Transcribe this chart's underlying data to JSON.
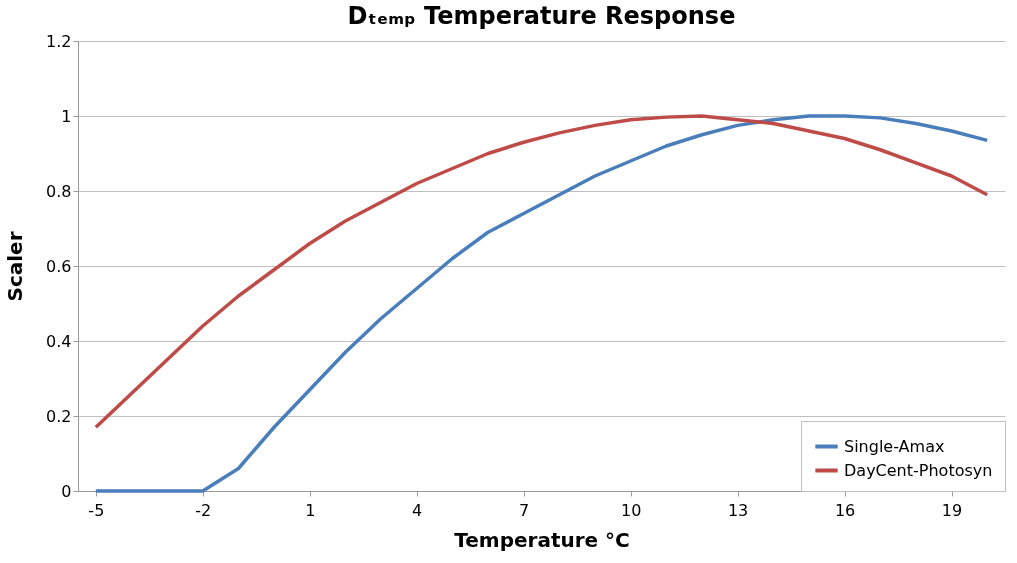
{
  "chart_data": {
    "type": "line",
    "title": "Dₜₑₘₚ Temperature Response",
    "xlabel": "Temperature °C",
    "ylabel": "Scaler",
    "x": [
      -5,
      -4,
      -3,
      -2,
      -1,
      0,
      1,
      2,
      3,
      4,
      5,
      6,
      7,
      8,
      9,
      10,
      11,
      12,
      13,
      14,
      15,
      16,
      17,
      18,
      19,
      20
    ],
    "series": [
      {
        "name": "Single-Amax",
        "color": "#4a7ebb",
        "values": [
          0,
          0,
          0,
          0,
          0.06,
          0.17,
          0.27,
          0.37,
          0.46,
          0.54,
          0.62,
          0.69,
          0.74,
          0.79,
          0.84,
          0.88,
          0.92,
          0.95,
          0.975,
          0.99,
          1.0,
          1.0,
          0.995,
          0.98,
          0.96,
          0.935
        ]
      },
      {
        "name": "DayCent-Photosyn",
        "color": "#be4b48",
        "values": [
          0.17,
          0.26,
          0.35,
          0.44,
          0.52,
          0.59,
          0.66,
          0.72,
          0.77,
          0.82,
          0.86,
          0.9,
          0.93,
          0.955,
          0.975,
          0.99,
          0.997,
          1.0,
          0.99,
          0.98,
          0.96,
          0.94,
          0.91,
          0.875,
          0.84,
          0.79
        ]
      }
    ],
    "xlim": [
      -5.5,
      20.5
    ],
    "xticks": [
      -5,
      -2,
      1,
      4,
      7,
      10,
      13,
      16,
      19
    ],
    "ylim": [
      0,
      1.2
    ],
    "yticks": [
      0,
      0.2,
      0.4,
      0.6,
      0.8,
      1,
      1.2
    ],
    "grid": "y",
    "legend": "bottom right",
    "marker": "none",
    "line_style": "solid"
  }
}
